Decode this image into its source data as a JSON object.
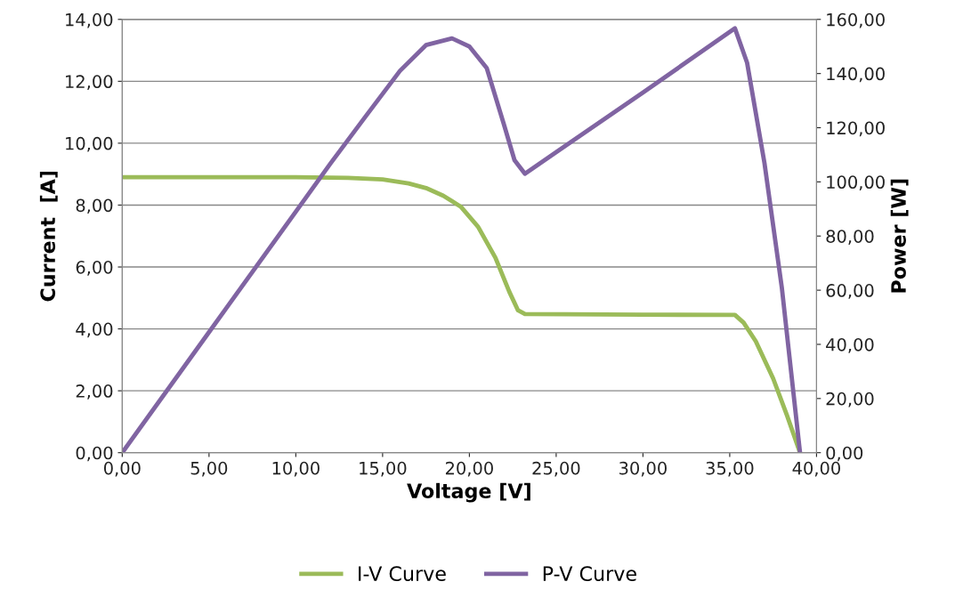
{
  "chart_data": {
    "type": "line",
    "xlabel": "Voltage [V]",
    "ylabel": "Current  [A]",
    "y2label": "Power [W]",
    "xlim": [
      0,
      40
    ],
    "ylim": [
      0,
      14
    ],
    "y2lim": [
      0,
      160
    ],
    "xticks": [
      {
        "value": 0,
        "label": "0,00"
      },
      {
        "value": 5,
        "label": "5,00"
      },
      {
        "value": 10,
        "label": "10,00"
      },
      {
        "value": 15,
        "label": "15,00"
      },
      {
        "value": 20,
        "label": "20,00"
      },
      {
        "value": 25,
        "label": "25,00"
      },
      {
        "value": 30,
        "label": "30,00"
      },
      {
        "value": 35,
        "label": "35,00"
      },
      {
        "value": 40,
        "label": "40,00"
      }
    ],
    "yticks": [
      {
        "value": 0,
        "label": "0,00"
      },
      {
        "value": 2,
        "label": "2,00"
      },
      {
        "value": 4,
        "label": "4,00"
      },
      {
        "value": 6,
        "label": "6,00"
      },
      {
        "value": 8,
        "label": "8,00"
      },
      {
        "value": 10,
        "label": "10,00"
      },
      {
        "value": 12,
        "label": "12,00"
      },
      {
        "value": 14,
        "label": "14,00"
      }
    ],
    "y2ticks": [
      {
        "value": 0,
        "label": "0,00"
      },
      {
        "value": 20,
        "label": "20,00"
      },
      {
        "value": 40,
        "label": "40,00"
      },
      {
        "value": 60,
        "label": "60,00"
      },
      {
        "value": 80,
        "label": "80,00"
      },
      {
        "value": 100,
        "label": "100,00"
      },
      {
        "value": 120,
        "label": "120,00"
      },
      {
        "value": 140,
        "label": "140,00"
      },
      {
        "value": 160,
        "label": "160,00"
      }
    ],
    "grid": "y",
    "legend": "bottom",
    "marker": "none",
    "line_style": "solid",
    "series": [
      {
        "name": "I-V Curve",
        "color": "#9bbb59",
        "x": [
          0,
          10,
          13,
          15,
          16.5,
          17.5,
          18.5,
          19.5,
          20.5,
          21.5,
          22.3,
          22.8,
          23.2,
          30,
          35.3,
          35.8,
          36.5,
          37.5,
          38.3,
          39.05
        ],
        "values": [
          8.9,
          8.9,
          8.88,
          8.83,
          8.7,
          8.55,
          8.3,
          7.95,
          7.3,
          6.3,
          5.2,
          4.6,
          4.48,
          4.46,
          4.45,
          4.2,
          3.6,
          2.4,
          1.2,
          0
        ]
      },
      {
        "name": "P-V Curve",
        "color": "#8064a2",
        "axis": "y2",
        "x": [
          0,
          5,
          10,
          12,
          14,
          16,
          17.5,
          19,
          20,
          21,
          22,
          22.6,
          23.2,
          25,
          30,
          35.3,
          36,
          37,
          38,
          39.05
        ],
        "values": [
          0,
          44.5,
          89,
          106.8,
          124,
          141,
          150.5,
          153,
          150,
          142,
          121,
          108,
          103,
          111,
          133,
          156.7,
          144,
          107,
          61,
          0
        ]
      }
    ]
  }
}
